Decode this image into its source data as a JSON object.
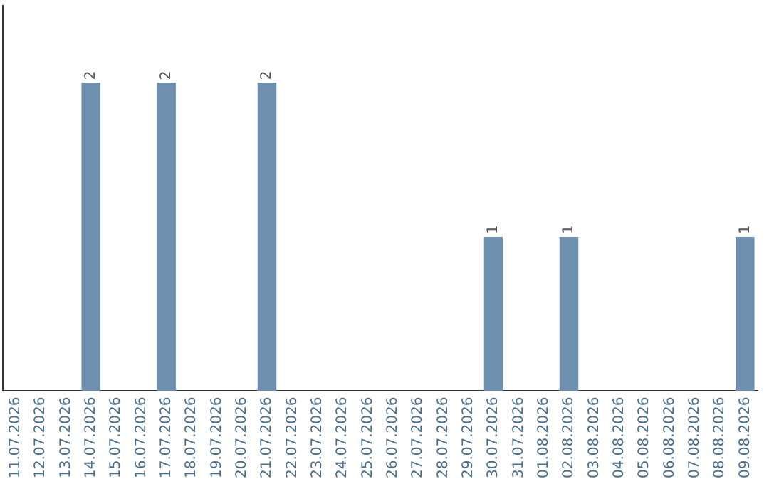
{
  "chart_data": {
    "type": "bar",
    "categories": [
      "11.07.2026",
      "12.07.2026",
      "13.07.2026",
      "14.07.2026",
      "15.07.2026",
      "16.07.2026",
      "17.07.2026",
      "18.07.2026",
      "19.07.2026",
      "20.07.2026",
      "21.07.2026",
      "22.07.2026",
      "23.07.2026",
      "24.07.2026",
      "25.07.2026",
      "26.07.2026",
      "27.07.2026",
      "28.07.2026",
      "29.07.2026",
      "30.07.2026",
      "31.07.2026",
      "01.08.2026",
      "02.08.2026",
      "03.08.2026",
      "04.08.2026",
      "05.08.2026",
      "06.08.2026",
      "07.08.2026",
      "08.08.2026",
      "09.08.2026"
    ],
    "values": [
      0,
      0,
      0,
      2,
      0,
      0,
      2,
      0,
      0,
      0,
      2,
      0,
      0,
      0,
      0,
      0,
      0,
      0,
      0,
      1,
      0,
      0,
      1,
      0,
      0,
      0,
      0,
      0,
      0,
      1
    ],
    "value_labels": [
      null,
      null,
      null,
      "2",
      null,
      null,
      "2",
      null,
      null,
      null,
      "2",
      null,
      null,
      null,
      null,
      null,
      null,
      null,
      null,
      "1",
      null,
      null,
      "1",
      null,
      null,
      null,
      null,
      null,
      null,
      "1"
    ],
    "color": "#6e8fad",
    "grid": false,
    "legend": false,
    "tick_labels": "x"
  }
}
